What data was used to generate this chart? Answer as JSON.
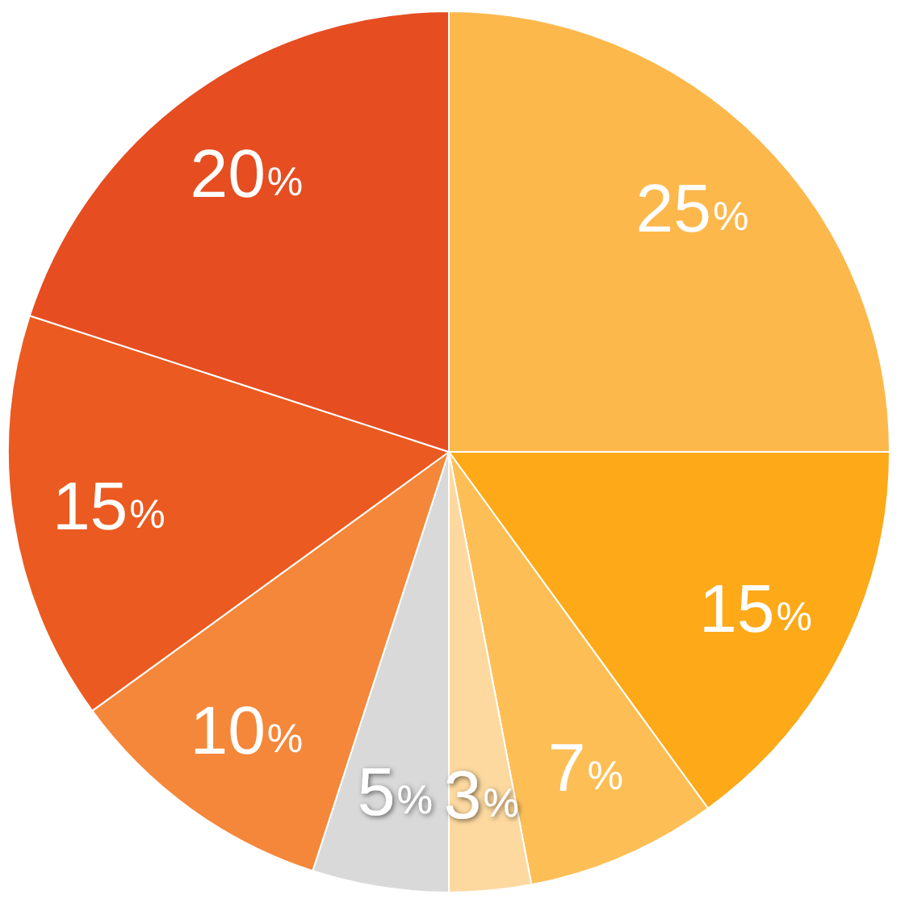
{
  "chart_data": {
    "type": "pie",
    "categories": [
      null,
      null,
      null,
      null,
      null,
      null,
      null,
      null
    ],
    "values": [
      25,
      15,
      7,
      3,
      5,
      10,
      15,
      20
    ],
    "colors": [
      "#fdb84c",
      "#fda918",
      "#fdbf55",
      "#fdd9a0",
      "#d9d9d9",
      "#f5873a",
      "#eb5a20",
      "#e64d21"
    ],
    "value_labels": [
      "25%",
      "15%",
      "7%",
      "3%",
      "5%",
      "10%",
      "15%",
      "20%"
    ]
  }
}
